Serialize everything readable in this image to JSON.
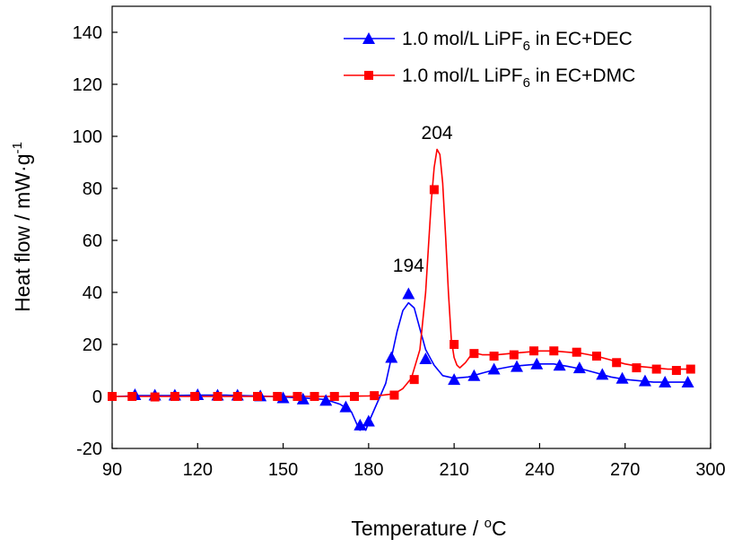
{
  "chart_data": {
    "type": "line",
    "xlabel": {
      "main": "Temperature / ",
      "sup": "o",
      "unit": "C"
    },
    "ylabel": {
      "main": "Heat flow / mW·g",
      "sup": "-1"
    },
    "xlim": [
      90,
      300
    ],
    "ylim": [
      -20,
      150
    ],
    "xticks": [
      90,
      120,
      150,
      180,
      210,
      240,
      270,
      300
    ],
    "yticks": [
      -20,
      0,
      20,
      40,
      60,
      80,
      100,
      120,
      140
    ],
    "legend_position": "top-right",
    "annotations": [
      {
        "text": "194",
        "x": 194,
        "y": 48
      },
      {
        "text": "204",
        "x": 204,
        "y": 99
      }
    ],
    "series": [
      {
        "legend": {
          "pre": "1.0 mol/L LiPF",
          "sub": "6",
          "post": " in EC+DEC"
        },
        "color": "#0000ff",
        "marker": "triangle",
        "curve": [
          [
            92,
            0
          ],
          [
            100,
            0.3
          ],
          [
            110,
            0.3
          ],
          [
            120,
            0.5
          ],
          [
            130,
            0.5
          ],
          [
            140,
            0.2
          ],
          [
            150,
            -0.2
          ],
          [
            160,
            -0.8
          ],
          [
            165,
            -1.2
          ],
          [
            170,
            -3
          ],
          [
            174,
            -6
          ],
          [
            176,
            -11
          ],
          [
            177,
            -13
          ],
          [
            178,
            -11
          ],
          [
            179,
            -13
          ],
          [
            180,
            -10
          ],
          [
            182,
            -5
          ],
          [
            184,
            0
          ],
          [
            186,
            5
          ],
          [
            188,
            15
          ],
          [
            190,
            25
          ],
          [
            192,
            33
          ],
          [
            194,
            36
          ],
          [
            196,
            34
          ],
          [
            198,
            26
          ],
          [
            200,
            18
          ],
          [
            203,
            12
          ],
          [
            206,
            8
          ],
          [
            210,
            7
          ],
          [
            215,
            7.5
          ],
          [
            220,
            9
          ],
          [
            225,
            10.5
          ],
          [
            230,
            11.5
          ],
          [
            235,
            12
          ],
          [
            240,
            12.5
          ],
          [
            245,
            12.5
          ],
          [
            250,
            11.5
          ],
          [
            255,
            10.5
          ],
          [
            260,
            9
          ],
          [
            265,
            7.5
          ],
          [
            270,
            6.5
          ],
          [
            275,
            6
          ],
          [
            280,
            5.5
          ],
          [
            285,
            5.5
          ],
          [
            290,
            5.5
          ],
          [
            293,
            5.5
          ]
        ],
        "markers": [
          [
            98,
            0.7
          ],
          [
            105,
            0.5
          ],
          [
            112,
            0.5
          ],
          [
            120,
            0.7
          ],
          [
            127,
            0.5
          ],
          [
            134,
            0.5
          ],
          [
            142,
            0.2
          ],
          [
            150,
            -0.5
          ],
          [
            157,
            -1
          ],
          [
            165,
            -1.5
          ],
          [
            172,
            -4
          ],
          [
            177,
            -11
          ],
          [
            180,
            -9.5
          ],
          [
            188,
            15
          ],
          [
            194,
            39.5
          ],
          [
            200,
            14.5
          ],
          [
            210,
            6.5
          ],
          [
            217,
            8
          ],
          [
            224,
            10.5
          ],
          [
            232,
            11.5
          ],
          [
            239,
            12.5
          ],
          [
            247,
            12
          ],
          [
            254,
            11
          ],
          [
            262,
            8.5
          ],
          [
            269,
            7
          ],
          [
            277,
            6
          ],
          [
            284,
            5.5
          ],
          [
            292,
            5.5
          ]
        ]
      },
      {
        "legend": {
          "pre": "1.0 mol/L LiPF",
          "sub": "6",
          "post": " in EC+DMC"
        },
        "color": "#ff0000",
        "marker": "square",
        "curve": [
          [
            90,
            0
          ],
          [
            100,
            0
          ],
          [
            110,
            0
          ],
          [
            120,
            0
          ],
          [
            130,
            0
          ],
          [
            140,
            0
          ],
          [
            150,
            0
          ],
          [
            160,
            0
          ],
          [
            170,
            0
          ],
          [
            180,
            0.2
          ],
          [
            185,
            0.5
          ],
          [
            189,
            1
          ],
          [
            192,
            3
          ],
          [
            195,
            7
          ],
          [
            198,
            18
          ],
          [
            200,
            40
          ],
          [
            201,
            58
          ],
          [
            202,
            75
          ],
          [
            203,
            88
          ],
          [
            204,
            95
          ],
          [
            205,
            93
          ],
          [
            206,
            82
          ],
          [
            207,
            62
          ],
          [
            208,
            40
          ],
          [
            209,
            22
          ],
          [
            210,
            15
          ],
          [
            211,
            12
          ],
          [
            212,
            11
          ],
          [
            214,
            13
          ],
          [
            216,
            16
          ],
          [
            218,
            16.5
          ],
          [
            220,
            16
          ],
          [
            225,
            16
          ],
          [
            230,
            16.5
          ],
          [
            235,
            17
          ],
          [
            240,
            17.5
          ],
          [
            245,
            17.5
          ],
          [
            250,
            17
          ],
          [
            255,
            16.5
          ],
          [
            260,
            15.5
          ],
          [
            265,
            14
          ],
          [
            270,
            12.5
          ],
          [
            275,
            11.5
          ],
          [
            280,
            11
          ],
          [
            285,
            10.5
          ],
          [
            290,
            10.5
          ],
          [
            293,
            10.5
          ]
        ],
        "markers": [
          [
            90,
            0
          ],
          [
            97,
            0
          ],
          [
            105,
            -0.2
          ],
          [
            112,
            0
          ],
          [
            119,
            0
          ],
          [
            127,
            0
          ],
          [
            134,
            0
          ],
          [
            141,
            0
          ],
          [
            148,
            0
          ],
          [
            155,
            0
          ],
          [
            161,
            0
          ],
          [
            168,
            0
          ],
          [
            175,
            0
          ],
          [
            182,
            0.3
          ],
          [
            189,
            0.5
          ],
          [
            196,
            6.5
          ],
          [
            203,
            79.5
          ],
          [
            210,
            20
          ],
          [
            217,
            16.5
          ],
          [
            224,
            15.5
          ],
          [
            231,
            16
          ],
          [
            238,
            17.5
          ],
          [
            245,
            17.5
          ],
          [
            253,
            17
          ],
          [
            260,
            15.5
          ],
          [
            267,
            13
          ],
          [
            274,
            11
          ],
          [
            281,
            10.5
          ],
          [
            288,
            10
          ],
          [
            293,
            10.5
          ]
        ]
      }
    ]
  }
}
